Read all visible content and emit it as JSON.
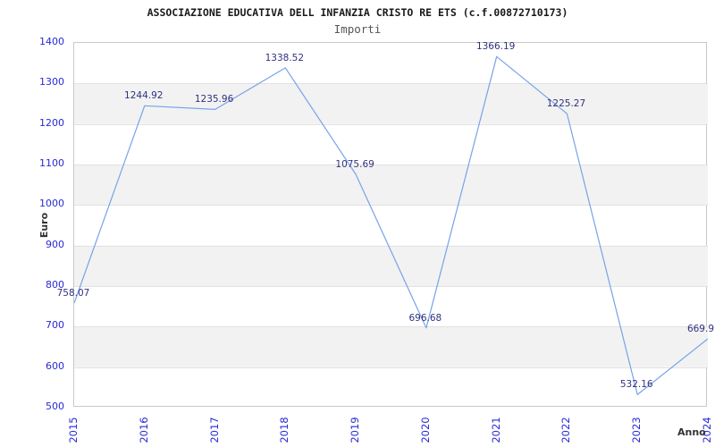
{
  "chart_data": {
    "type": "line",
    "title": "ASSOCIAZIONE EDUCATIVA DELL INFANZIA CRISTO RE ETS (c.f.00872710173)",
    "subtitle": "Importi",
    "xlabel": "Anno",
    "ylabel": "Euro",
    "categories": [
      "2015",
      "2016",
      "2017",
      "2018",
      "2019",
      "2020",
      "2021",
      "2022",
      "2023",
      "2024"
    ],
    "series": [
      {
        "name": "Importi",
        "values": [
          758.07,
          1244.92,
          1235.96,
          1338.52,
          1075.69,
          696.68,
          1366.19,
          1225.27,
          532.16,
          669.9
        ]
      }
    ],
    "point_labels": [
      "758.07",
      "1244.92",
      "1235.96",
      "1338.52",
      "1075.69",
      "696.68",
      "1366.19",
      "1225.27",
      "532.16",
      "669.9"
    ],
    "ylim": [
      500,
      1400
    ],
    "ytick_step": 100,
    "yticks": [
      500,
      600,
      700,
      800,
      900,
      1000,
      1100,
      1200,
      1300,
      1400
    ],
    "grid": "alternating-horizontal-bands",
    "legend": "none",
    "colors": {
      "line": "#76a3e8",
      "tick_label": "#2929d6",
      "point_label": "#31317f",
      "band_fill": "#f2f2f2",
      "gridline": "#e2e2e2",
      "plot_border": "#c9c9c9",
      "title": "#1a1a1a",
      "subtitle": "#555555",
      "axis_title": "#333333",
      "background": "#ffffff"
    }
  }
}
